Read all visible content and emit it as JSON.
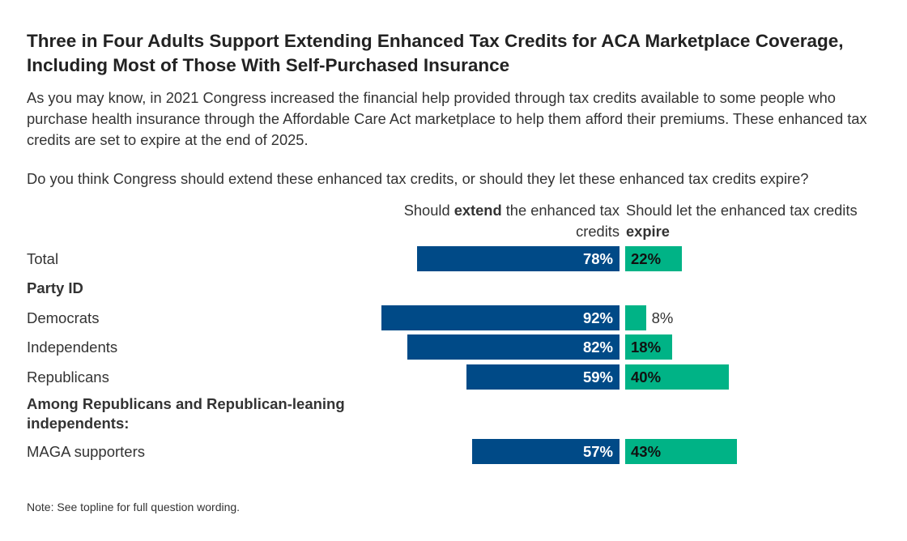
{
  "title": "Three in Four Adults Support Extending Enhanced Tax Credits for ACA Marketplace Coverage, Including Most of Those With Self-Purchased Insurance",
  "subtitle": "As you may know, in 2021 Congress increased the financial help provided through tax credits available to some people who purchase health insurance through the Affordable Care Act marketplace to help them afford their premiums. These enhanced tax credits are set to expire at the end of 2025.",
  "question": "Do you think Congress should extend these enhanced tax credits, or should they let these enhanced tax credits expire?",
  "note": "Note: See topline for full question wording.",
  "colors": {
    "extend": "#004a87",
    "expire": "#00b386"
  },
  "chart_data": {
    "type": "bar",
    "orientation": "horizontal-diverging",
    "series": [
      {
        "name_parts": [
          "Should ",
          "extend",
          " the enhanced tax credits"
        ],
        "name": "Should extend the enhanced tax credits",
        "values": [
          78,
          92,
          82,
          59,
          57
        ]
      },
      {
        "name_parts": [
          "Should let the enhanced tax credits ",
          "expire"
        ],
        "name": "Should let the enhanced tax credits expire",
        "values": [
          22,
          8,
          18,
          40,
          43
        ]
      }
    ],
    "categories": [
      "Total",
      "Democrats",
      "Independents",
      "Republicans",
      "MAGA supporters"
    ],
    "group_headers": [
      "Party ID",
      "Among Republicans and Republican-leaning independents:"
    ],
    "value_format": "{v}%",
    "xlim": [
      0,
      100
    ]
  }
}
